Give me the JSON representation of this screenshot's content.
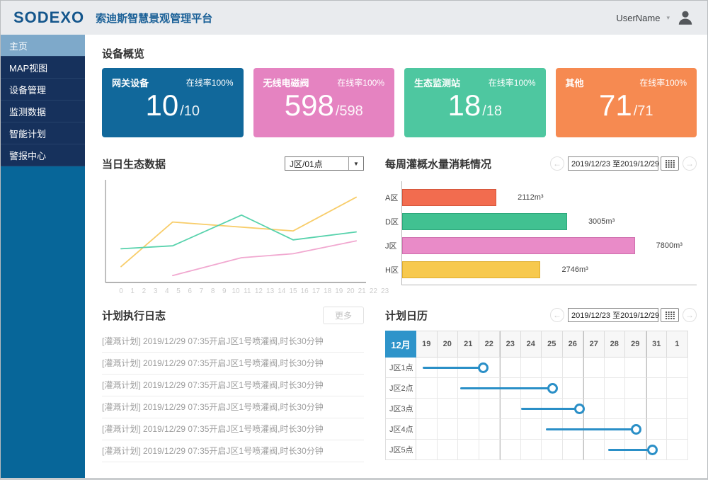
{
  "header": {
    "logo": "SODEXO",
    "title": "索迪斯智慧景观管理平台",
    "user": "UserName",
    "caret": "▾"
  },
  "sidebar": {
    "items": [
      {
        "label": "主页",
        "active": true
      },
      {
        "label": "MAP视图",
        "active": false
      },
      {
        "label": "设备管理",
        "active": false
      },
      {
        "label": "监测数据",
        "active": false
      },
      {
        "label": "智能计划",
        "active": false
      },
      {
        "label": "警报中心",
        "active": false
      }
    ],
    "colors": {
      "menu_bg": "#16315c",
      "active_bg": "#7ea9ca",
      "lower_bg": "#076699"
    }
  },
  "overview": {
    "title": "设备概览",
    "cards": [
      {
        "label": "网关设备",
        "rate": "在线率100%",
        "count": "10",
        "total": "/10",
        "color": "#11689b"
      },
      {
        "label": "无线电磁阀",
        "rate": "在线率100%",
        "count": "598",
        "total": "/598",
        "color": "#e583c1"
      },
      {
        "label": "生态监测站",
        "rate": "在线率100%",
        "count": "18",
        "total": "/18",
        "color": "#4ec7a0"
      },
      {
        "label": "其他",
        "rate": "在线率100%",
        "count": "71",
        "total": "/71",
        "color": "#f68a51"
      }
    ]
  },
  "eco": {
    "title": "当日生态数据",
    "selector": "J区/01点"
  },
  "water": {
    "title": "每周灌概水量消耗情况",
    "date_range": "2019/12/23 至2019/12/29",
    "prev": "←",
    "next": "→"
  },
  "logs": {
    "title": "计划执行日志",
    "more": "更多",
    "entries": [
      "[灌溉计划] 2019/12/29 07:35开启J区1号喷灌阀,时长30分钟",
      "[灌溉计划] 2019/12/29 07:35开启J区1号喷灌阀,时长30分钟",
      "[灌溉计划] 2019/12/29 07:35开启J区1号喷灌阀,时长30分钟",
      "[灌溉计划] 2019/12/29 07:35开启J区1号喷灌阀,时长30分钟",
      "[灌溉计划] 2019/12/29 07:35开启J区1号喷灌阀,时长30分钟",
      "[灌溉计划] 2019/12/29 07:35开启J区1号喷灌阀,时长30分钟"
    ]
  },
  "calendar": {
    "title": "计划日历",
    "date_range": "2019/12/23 至2019/12/29",
    "prev": "←",
    "next": "→"
  },
  "chart_data": [
    {
      "type": "line",
      "title": "当日生态数据",
      "xlabel": "",
      "ylabel": "",
      "x_range": [
        0,
        23
      ],
      "x_ticks": [
        "0",
        "1",
        "2",
        "3",
        "4",
        "5",
        "6",
        "7",
        "8",
        "9",
        "10",
        "11",
        "12",
        "13",
        "14",
        "15",
        "16",
        "17",
        "18",
        "19",
        "20",
        "21",
        "22",
        "23"
      ],
      "grid": false,
      "legend": "none",
      "y_axis_labels_shown": false,
      "series": [
        {
          "name": "yellow-series",
          "color": "#f8cd6a",
          "points": [
            [
              0,
              16
            ],
            [
              4.5,
              61
            ],
            [
              15,
              52
            ],
            [
              20.5,
              86
            ]
          ]
        },
        {
          "name": "green-series",
          "color": "#57d2ac",
          "points": [
            [
              0,
              34
            ],
            [
              4.5,
              37
            ],
            [
              10.5,
              68
            ],
            [
              15,
              43
            ],
            [
              20.5,
              51
            ]
          ]
        },
        {
          "name": "pink-series",
          "color": "#f1a8d0",
          "points": [
            [
              4.5,
              7
            ],
            [
              10.5,
              25
            ],
            [
              15,
              29
            ],
            [
              20.5,
              42
            ]
          ]
        }
      ]
    },
    {
      "type": "bar",
      "orientation": "horizontal",
      "title": "每周灌概水量消耗情况",
      "categories": [
        "A区",
        "D区",
        "J区",
        "H区"
      ],
      "values": [
        2112,
        3005,
        7800,
        2746
      ],
      "value_labels": [
        "2112m³",
        "3005m³",
        "7800m³",
        "2746m³"
      ],
      "colors": [
        "#f26c4f",
        "#41c191",
        "#e98bc8",
        "#f7c94e"
      ],
      "border_colors": [
        "#d5563c",
        "#2ea87c",
        "#cf6fae",
        "#dfae2f"
      ],
      "bar_display_pct": [
        32,
        56,
        79,
        47
      ]
    },
    {
      "type": "gantt",
      "title": "计划日历",
      "month": "12月",
      "day_columns": [
        "19",
        "20",
        "21",
        "22",
        "23",
        "24",
        "25",
        "26",
        "27",
        "28",
        "29",
        "31",
        "1"
      ],
      "week_divider_columns": [
        "23",
        "27",
        "31"
      ],
      "line_color": "#2a8fc7",
      "rows": [
        {
          "label": "J区1点",
          "start_col": 0.3,
          "end_col": 3.2
        },
        {
          "label": "J区2点",
          "start_col": 2.1,
          "end_col": 6.5
        },
        {
          "label": "J区3点",
          "start_col": 5.0,
          "end_col": 7.8
        },
        {
          "label": "J区4点",
          "start_col": 6.2,
          "end_col": 10.5
        },
        {
          "label": "J区5点",
          "start_col": 9.2,
          "end_col": 11.3
        }
      ]
    }
  ]
}
